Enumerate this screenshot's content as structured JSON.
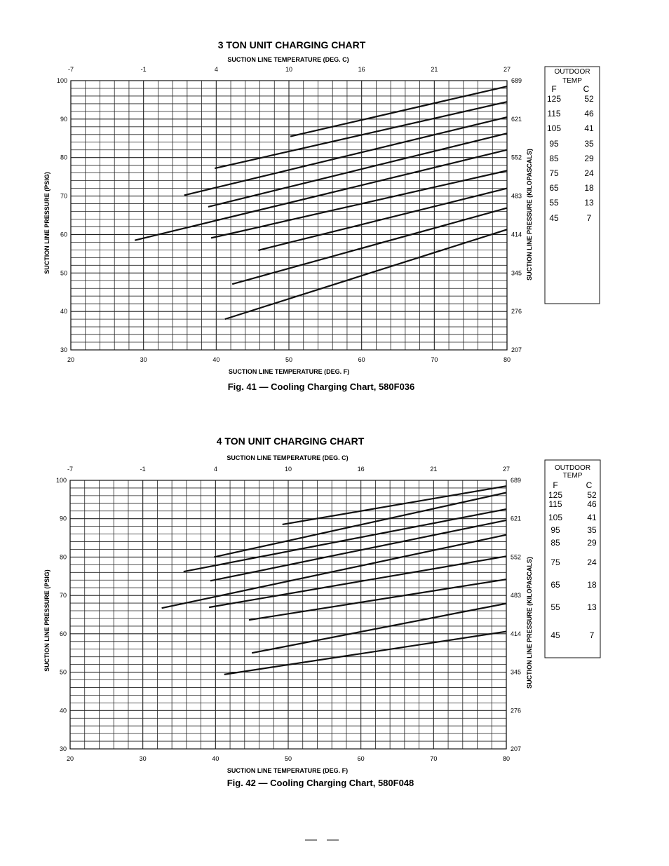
{
  "chart_data": [
    {
      "type": "line",
      "title": "3 TON UNIT CHARGING CHART",
      "caption": "Fig. 41 — Cooling Charging Chart, 580F036",
      "xlabel": "SUCTION LINE TEMPERATURE (DEG. F)",
      "x2label": "SUCTION LINE TEMPERATURE (DEG. C)",
      "ylabel": "SUCTION LINE PRESSURE (PSIG)",
      "y2label": "SUCTION LINE PRESSURE (KILOPASCALS)",
      "xlim": [
        20,
        80
      ],
      "ylim": [
        30,
        100
      ],
      "x_ticks": [
        "20",
        "30",
        "40",
        "50",
        "60",
        "70",
        "80"
      ],
      "x2_ticks": [
        "-7",
        "-1",
        "4",
        "10",
        "16",
        "21",
        "27"
      ],
      "y_ticks": [
        "30",
        "40",
        "50",
        "60",
        "70",
        "80",
        "90",
        "100"
      ],
      "y2_ticks": [
        "207",
        "276",
        "345",
        "414",
        "483",
        "552",
        "621",
        "689"
      ],
      "grid": true,
      "legend": {
        "title": "OUTDOOR TEMP",
        "headers": [
          "F",
          "C"
        ],
        "rows": [
          [
            "125",
            "52"
          ],
          [
            "115",
            "46"
          ],
          [
            "105",
            "41"
          ],
          [
            "95",
            "35"
          ],
          [
            "85",
            "29"
          ],
          [
            "75",
            "24"
          ],
          [
            "65",
            "18"
          ],
          [
            "55",
            "13"
          ],
          [
            "45",
            "7"
          ]
        ]
      },
      "series": [
        {
          "x": [
            50.2,
            80
          ],
          "y": [
            85.5,
            98.5
          ]
        },
        {
          "x": [
            39.8,
            80
          ],
          "y": [
            77.2,
            94.5
          ]
        },
        {
          "x": [
            35.6,
            80
          ],
          "y": [
            70.2,
            90.5
          ]
        },
        {
          "x": [
            38.9,
            80
          ],
          "y": [
            67.2,
            86.3
          ]
        },
        {
          "x": [
            28.8,
            80
          ],
          "y": [
            58.5,
            82.0
          ]
        },
        {
          "x": [
            39.3,
            80
          ],
          "y": [
            59.1,
            76.6
          ]
        },
        {
          "x": [
            45.8,
            80
          ],
          "y": [
            55.9,
            72.0
          ]
        },
        {
          "x": [
            42.2,
            80
          ],
          "y": [
            47.1,
            66.9
          ]
        },
        {
          "x": [
            41.2,
            80
          ],
          "y": [
            38.0,
            61.3
          ]
        }
      ]
    },
    {
      "type": "line",
      "title": "4 TON UNIT CHARGING CHART",
      "caption": "Fig. 42 — Cooling Charging Chart, 580F048",
      "xlabel": "SUCTION LINE TEMPERATURE (DEG. F)",
      "x2label": "SUCTION LINE TEMPERATURE (DEG. C)",
      "ylabel": "SUCTION LINE PRESSURE (PSIG)",
      "y2label": "SUCTION LINE PRESSURE (KILOPASCALS)",
      "xlim": [
        20,
        80
      ],
      "ylim": [
        30,
        100
      ],
      "x_ticks": [
        "20",
        "30",
        "40",
        "50",
        "60",
        "70",
        "80"
      ],
      "x2_ticks": [
        "-7",
        "-1",
        "4",
        "10",
        "16",
        "21",
        "27"
      ],
      "y_ticks": [
        "30",
        "40",
        "50",
        "60",
        "70",
        "80",
        "90",
        "100"
      ],
      "y2_ticks": [
        "207",
        "276",
        "345",
        "414",
        "483",
        "552",
        "621",
        "689"
      ],
      "grid": true,
      "legend": {
        "title": "OUTDOOR TEMP",
        "headers": [
          "F",
          "C"
        ],
        "rows": [
          [
            "125",
            "52"
          ],
          [
            "115",
            "46"
          ],
          [
            "105",
            "41"
          ],
          [
            "95",
            "35"
          ],
          [
            "85",
            "29"
          ],
          [
            "75",
            "24"
          ],
          [
            "65",
            "18"
          ],
          [
            "55",
            "13"
          ],
          [
            "45",
            "7"
          ]
        ]
      },
      "series": [
        {
          "x": [
            49.2,
            80
          ],
          "y": [
            88.5,
            98.5
          ]
        },
        {
          "x": [
            39.8,
            80
          ],
          "y": [
            80.0,
            96.8
          ]
        },
        {
          "x": [
            35.6,
            80
          ],
          "y": [
            76.2,
            92.5
          ]
        },
        {
          "x": [
            39.3,
            80
          ],
          "y": [
            73.8,
            89.6
          ]
        },
        {
          "x": [
            32.6,
            80
          ],
          "y": [
            66.7,
            85.8
          ]
        },
        {
          "x": [
            39.1,
            80
          ],
          "y": [
            66.9,
            80.2
          ]
        },
        {
          "x": [
            44.6,
            80
          ],
          "y": [
            63.6,
            74.2
          ]
        },
        {
          "x": [
            45.0,
            80
          ],
          "y": [
            55.0,
            67.9
          ]
        },
        {
          "x": [
            41.2,
            80
          ],
          "y": [
            49.4,
            60.6
          ]
        }
      ]
    }
  ]
}
